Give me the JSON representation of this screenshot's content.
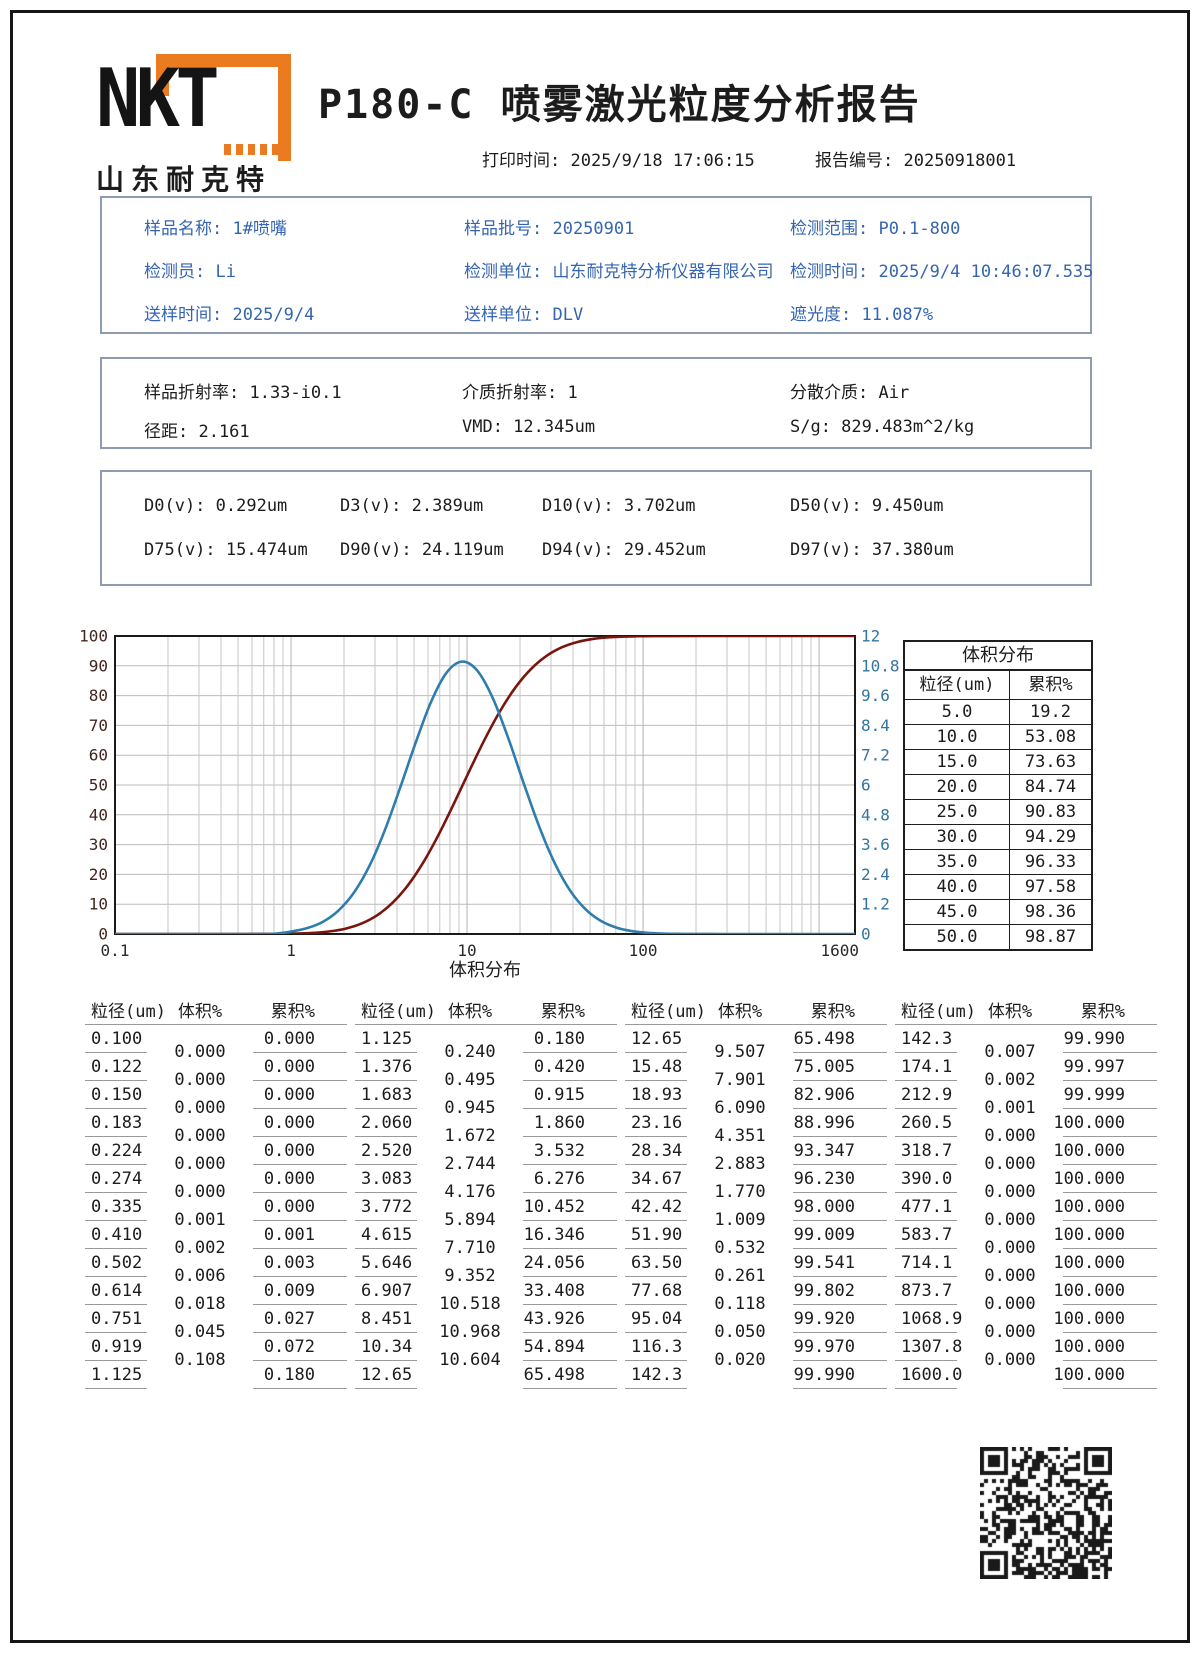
{
  "header": {
    "logo_text": "NKT",
    "logo_subtext": "山东耐克特",
    "title": "P180-C 喷雾激光粒度分析报告",
    "print_time_label": "打印时间:",
    "print_time_value": "2025/9/18 17:06:15",
    "report_no_label": "报告编号:",
    "report_no_value": "20250918001"
  },
  "sample_info": {
    "items": [
      {
        "label": "样品名称:",
        "value": "1#喷嘴"
      },
      {
        "label": "样品批号:",
        "value": "20250901"
      },
      {
        "label": "检测范围:",
        "value": "P0.1-800"
      },
      {
        "label": "检测员:",
        "value": "Li"
      },
      {
        "label": "检测单位:",
        "value": "山东耐克特分析仪器有限公司"
      },
      {
        "label": "检测时间:",
        "value": "2025/9/4 10:46:07.535"
      },
      {
        "label": "送样时间:",
        "value": "2025/9/4"
      },
      {
        "label": "送样单位:",
        "value": "DLV"
      },
      {
        "label": "遮光度:",
        "value": "11.087%"
      }
    ]
  },
  "optics_info": {
    "items": [
      {
        "label": "样品折射率:",
        "value": "1.33-i0.1"
      },
      {
        "label": "介质折射率:",
        "value": "1"
      },
      {
        "label": "分散介质:",
        "value": "Air"
      },
      {
        "label": "径距:",
        "value": "2.161"
      },
      {
        "label": "VMD:",
        "value": "12.345um"
      },
      {
        "label": "S/g:",
        "value": "829.483m^2/kg"
      }
    ]
  },
  "d_values": {
    "items": [
      {
        "label": "D0(v):",
        "value": "0.292um"
      },
      {
        "label": "D3(v):",
        "value": "2.389um"
      },
      {
        "label": "D10(v):",
        "value": "3.702um"
      },
      {
        "label": "D50(v):",
        "value": "9.450um"
      },
      {
        "label": "D75(v):",
        "value": "15.474um"
      },
      {
        "label": "D90(v):",
        "value": "24.119um"
      },
      {
        "label": "D94(v):",
        "value": "29.452um"
      },
      {
        "label": "D97(v):",
        "value": "37.380um"
      }
    ]
  },
  "chart_data": {
    "type": "line",
    "x_axis": {
      "scale": "log",
      "min": 0.1,
      "max": 1600,
      "ticks": [
        "0.1",
        "1",
        "10",
        "100",
        "1600"
      ],
      "tick_values": [
        0.1,
        1,
        10,
        100,
        1600
      ],
      "label": "体积分布"
    },
    "y_left": {
      "min": 0,
      "max": 100,
      "step": 10,
      "ticks": [
        100,
        90,
        80,
        70,
        60,
        50,
        40,
        30,
        20,
        10,
        0
      ],
      "color": "#43251f"
    },
    "y_right": {
      "min": 0,
      "max": 12,
      "ticks": [
        "12",
        "10.8",
        "9.6",
        "8.4",
        "7.2",
        "6",
        "4.8",
        "3.6",
        "2.4",
        "1.2",
        "0"
      ],
      "color": "#3474a0"
    },
    "grid": true,
    "legend": "none",
    "series": [
      {
        "name": "累积%",
        "axis": "left",
        "color": "#7a150e",
        "points": [
          [
            0.1,
            0
          ],
          [
            0.5,
            0.003
          ],
          [
            0.751,
            0.027
          ],
          [
            0.919,
            0.072
          ],
          [
            1.125,
            0.18
          ],
          [
            1.376,
            0.42
          ],
          [
            1.683,
            0.915
          ],
          [
            2.06,
            1.86
          ],
          [
            2.52,
            3.532
          ],
          [
            3.083,
            6.276
          ],
          [
            3.772,
            10.452
          ],
          [
            4.615,
            16.346
          ],
          [
            5.646,
            24.056
          ],
          [
            6.907,
            33.408
          ],
          [
            8.451,
            43.926
          ],
          [
            10.34,
            54.894
          ],
          [
            12.65,
            65.498
          ],
          [
            15.48,
            75.005
          ],
          [
            18.93,
            82.906
          ],
          [
            23.16,
            88.996
          ],
          [
            28.34,
            93.347
          ],
          [
            34.67,
            96.23
          ],
          [
            42.42,
            98.0
          ],
          [
            51.9,
            99.009
          ],
          [
            63.5,
            99.541
          ],
          [
            77.68,
            99.802
          ],
          [
            95.04,
            99.92
          ],
          [
            116.3,
            99.97
          ],
          [
            142.3,
            99.99
          ],
          [
            212.9,
            99.999
          ],
          [
            390,
            100
          ],
          [
            1600,
            100
          ]
        ]
      },
      {
        "name": "体积%",
        "axis": "right",
        "color": "#2e7dad",
        "points": [
          [
            0.1,
            0
          ],
          [
            0.6,
            0
          ],
          [
            0.83,
            0.02
          ],
          [
            1.02,
            0.108
          ],
          [
            1.24,
            0.24
          ],
          [
            1.52,
            0.495
          ],
          [
            1.86,
            0.945
          ],
          [
            2.28,
            1.672
          ],
          [
            2.79,
            2.744
          ],
          [
            3.41,
            4.176
          ],
          [
            4.17,
            5.894
          ],
          [
            5.11,
            7.71
          ],
          [
            6.25,
            9.352
          ],
          [
            7.64,
            10.518
          ],
          [
            9.35,
            10.968
          ],
          [
            11.44,
            10.604
          ],
          [
            13.99,
            9.507
          ],
          [
            17.12,
            7.901
          ],
          [
            20.94,
            6.09
          ],
          [
            25.62,
            4.351
          ],
          [
            31.35,
            2.883
          ],
          [
            38.35,
            1.77
          ],
          [
            46.92,
            1.009
          ],
          [
            57.41,
            0.532
          ],
          [
            70.23,
            0.261
          ],
          [
            85.92,
            0.118
          ],
          [
            105.1,
            0.05
          ],
          [
            128.6,
            0.02
          ],
          [
            157.4,
            0.007
          ],
          [
            192.5,
            0.002
          ],
          [
            235.5,
            0.001
          ],
          [
            300,
            0
          ],
          [
            1600,
            0
          ]
        ]
      }
    ]
  },
  "volume_table": {
    "title": "体积分布",
    "headers": [
      "粒径(um)",
      "累积%"
    ],
    "rows": [
      [
        "5.0",
        "19.2"
      ],
      [
        "10.0",
        "53.08"
      ],
      [
        "15.0",
        "73.63"
      ],
      [
        "20.0",
        "84.74"
      ],
      [
        "25.0",
        "90.83"
      ],
      [
        "30.0",
        "94.29"
      ],
      [
        "35.0",
        "96.33"
      ],
      [
        "40.0",
        "97.58"
      ],
      [
        "45.0",
        "98.36"
      ],
      [
        "50.0",
        "98.87"
      ]
    ]
  },
  "dist_table": {
    "headers": [
      "粒径(um)",
      "体积%",
      "累积%"
    ],
    "groups": [
      {
        "sizes": [
          "0.100",
          "0.122",
          "0.150",
          "0.183",
          "0.224",
          "0.274",
          "0.335",
          "0.410",
          "0.502",
          "0.614",
          "0.751",
          "0.919",
          "1.125"
        ],
        "volumes": [
          "0.000",
          "0.000",
          "0.000",
          "0.000",
          "0.000",
          "0.000",
          "0.001",
          "0.002",
          "0.006",
          "0.018",
          "0.045",
          "0.108"
        ],
        "cums": [
          "0.000",
          "0.000",
          "0.000",
          "0.000",
          "0.000",
          "0.000",
          "0.000",
          "0.001",
          "0.003",
          "0.009",
          "0.027",
          "0.072",
          "0.180"
        ]
      },
      {
        "sizes": [
          "1.125",
          "1.376",
          "1.683",
          "2.060",
          "2.520",
          "3.083",
          "3.772",
          "4.615",
          "5.646",
          "6.907",
          "8.451",
          "10.34",
          "12.65"
        ],
        "volumes": [
          "0.240",
          "0.495",
          "0.945",
          "1.672",
          "2.744",
          "4.176",
          "5.894",
          "7.710",
          "9.352",
          "10.518",
          "10.968",
          "10.604"
        ],
        "cums": [
          "0.180",
          "0.420",
          "0.915",
          "1.860",
          "3.532",
          "6.276",
          "10.452",
          "16.346",
          "24.056",
          "33.408",
          "43.926",
          "54.894",
          "65.498"
        ]
      },
      {
        "sizes": [
          "12.65",
          "15.48",
          "18.93",
          "23.16",
          "28.34",
          "34.67",
          "42.42",
          "51.90",
          "63.50",
          "77.68",
          "95.04",
          "116.3",
          "142.3"
        ],
        "volumes": [
          "9.507",
          "7.901",
          "6.090",
          "4.351",
          "2.883",
          "1.770",
          "1.009",
          "0.532",
          "0.261",
          "0.118",
          "0.050",
          "0.020"
        ],
        "cums": [
          "65.498",
          "75.005",
          "82.906",
          "88.996",
          "93.347",
          "96.230",
          "98.000",
          "99.009",
          "99.541",
          "99.802",
          "99.920",
          "99.970",
          "99.990"
        ]
      },
      {
        "sizes": [
          "142.3",
          "174.1",
          "212.9",
          "260.5",
          "318.7",
          "390.0",
          "477.1",
          "583.7",
          "714.1",
          "873.7",
          "1068.9",
          "1307.8",
          "1600.0"
        ],
        "volumes": [
          "0.007",
          "0.002",
          "0.001",
          "0.000",
          "0.000",
          "0.000",
          "0.000",
          "0.000",
          "0.000",
          "0.000",
          "0.000",
          "0.000"
        ],
        "cums": [
          "99.990",
          "99.997",
          "99.999",
          "100.000",
          "100.000",
          "100.000",
          "100.000",
          "100.000",
          "100.000",
          "100.000",
          "100.000",
          "100.000",
          "100.000"
        ]
      }
    ]
  },
  "colors": {
    "accent_orange": "#ea7b20",
    "info_blue": "#3565b0",
    "cumulative_line": "#7a150e",
    "frequency_line": "#2e7dad"
  }
}
